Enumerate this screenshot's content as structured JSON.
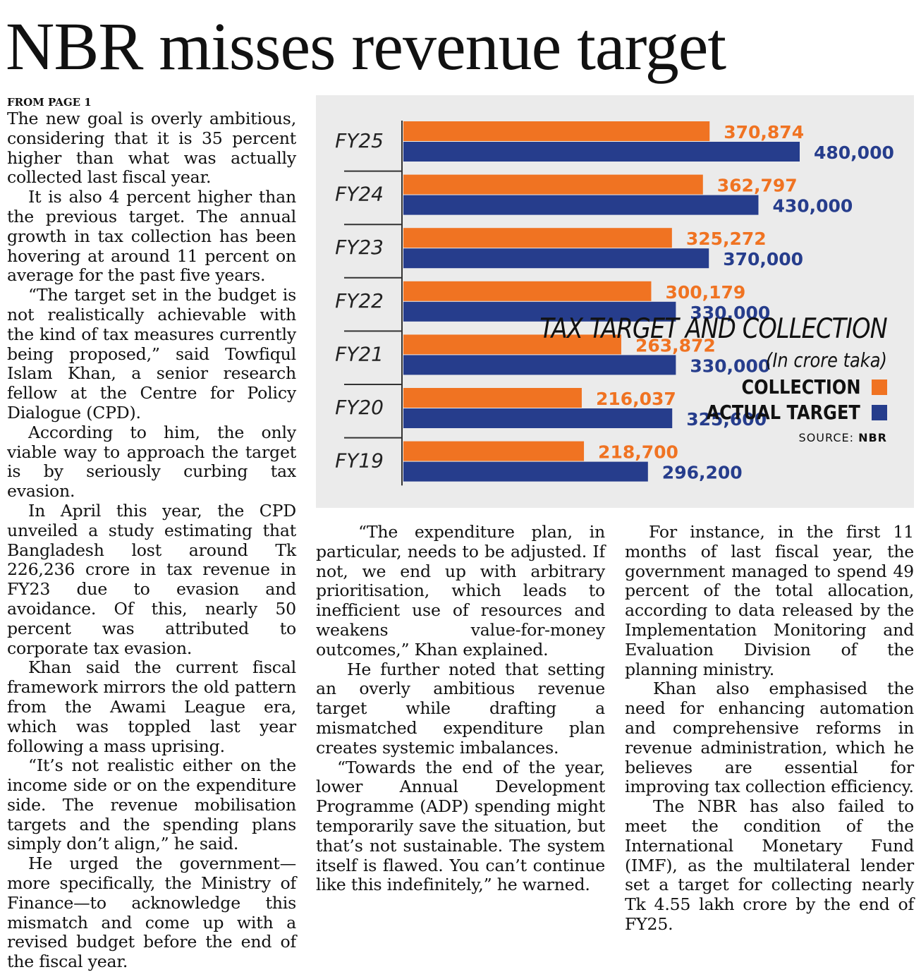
{
  "headline": "NBR misses revenue target",
  "column1": {
    "kicker": "FROM PAGE 1",
    "paragraphs": [
      "The new goal is overly ambitious, considering that it is 35 percent higher than what was actually collected last fiscal year.",
      "It is also 4 percent higher than the previous target. The annual growth in tax collection has been hovering at around 11 percent on average for the past five years.",
      "“The target set in the budget is not realistically achievable with the kind of tax measures currently being proposed,” said Towfiqul Islam Khan, a senior research fellow at the Centre for Policy Dialogue (CPD).",
      "According to him, the only viable way to approach the target is by seriously curbing tax evasion.",
      "In April this year, the CPD unveiled a study estimating that Bangladesh lost around Tk 226,236 crore in tax revenue in FY23 due to evasion and avoidance. Of this, nearly 50 percent was attributed to corporate tax evasion.",
      "Khan said the current fiscal framework mirrors the old pattern from the Awami League era, which was toppled last year following a mass uprising.",
      "“It’s not realistic either on the income side or on the expenditure side. The revenue mobilisation targets and the spending plans simply don’t align,” he said.",
      "He urged the government—more specifically, the Ministry of Finance—to acknowledge this mismatch and come up with a revised budget before the end of the fiscal year."
    ]
  },
  "column2": {
    "paragraphs": [
      "“The expenditure plan, in particular, needs to be adjusted. If not, we end up with arbitrary prioritisation, which leads to inefficient use of resources and weakens value-for-money outcomes,” Khan explained.",
      "He further noted that setting an overly ambitious revenue target while drafting a mismatched expenditure plan creates systemic imbalances.",
      "“Towards the end of the year, lower Annual Development Programme (ADP) spending might temporarily save the situation, but that’s not sustainable. The system itself is flawed. You can’t continue like this indefinitely,” he warned."
    ]
  },
  "column3": {
    "paragraphs": [
      "For instance, in the first 11 months of last fiscal year, the government managed to spend 49 percent of the total allocation, according to data released by the Implementation Monitoring and Evaluation Division of the planning ministry.",
      "Khan also emphasised the need for enhancing automation and comprehensive reforms in revenue administration, which he believes are essential for improving tax collection efficiency.",
      "The NBR has also failed to meet the condition of the International Monetary Fund (IMF), as the multilateral lender set a target for collecting nearly Tk 4.55 lakh crore by the end of FY25."
    ]
  },
  "chart_data": {
    "type": "bar",
    "orientation": "horizontal",
    "title": "TAX TARGET AND COLLECTION",
    "subtitle": "(In crore taka)",
    "source_label": "SOURCE:",
    "source_value": "NBR",
    "categories": [
      "FY25",
      "FY24",
      "FY23",
      "FY22",
      "FY21",
      "FY20",
      "FY19"
    ],
    "series": [
      {
        "name": "COLLECTION",
        "color": "#f07322",
        "values": [
          370874,
          362797,
          325272,
          300179,
          263872,
          216037,
          218700
        ],
        "labels": [
          "370,874",
          "362,797",
          "325,272",
          "300,179",
          "263,872",
          "216,037",
          "218,700"
        ]
      },
      {
        "name": "ACTUAL TARGET",
        "color": "#263d8c",
        "values": [
          480000,
          430000,
          370000,
          330000,
          330000,
          325600,
          296200
        ],
        "labels": [
          "480,000",
          "430,000",
          "370,000",
          "330,000",
          "330,000",
          "325,600",
          "296,200"
        ]
      }
    ],
    "xlim": [
      0,
      480000
    ],
    "grid": false,
    "legend": "right"
  }
}
